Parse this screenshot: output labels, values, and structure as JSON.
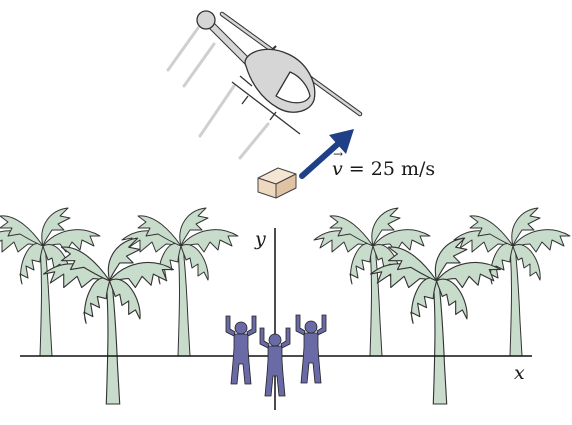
{
  "labels": {
    "velocity_symbol": "v",
    "velocity_equals": " = ",
    "velocity_value": "25 m/s",
    "y_axis": "y",
    "x_axis": "x"
  },
  "colors": {
    "palm_fill": "#c8dccb",
    "palm_stroke": "#333333",
    "helicopter_fill": "#d6d6d6",
    "arrow": "#1f3f86",
    "box_fill": "#eed8bf",
    "people_fill": "#6a6aa6",
    "axis": "#111111"
  }
}
